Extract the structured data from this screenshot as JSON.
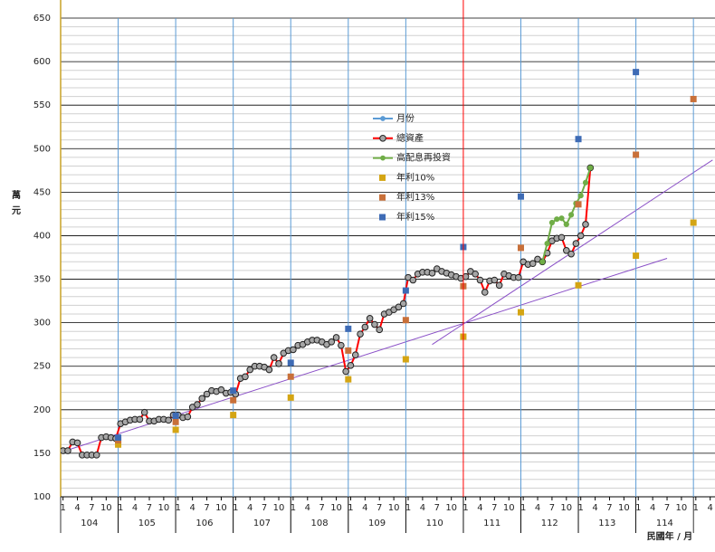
{
  "chart_data": {
    "type": "line",
    "y_title": "萬\n元",
    "x_title": "民國年 / 月",
    "xlim": [
      -0.5,
      136
    ],
    "ylim": [
      100,
      650
    ],
    "yticks": [
      100,
      150,
      200,
      250,
      300,
      350,
      400,
      450,
      500,
      550,
      600,
      650
    ],
    "y_minor_ticks": [
      110,
      120,
      130,
      140,
      160,
      170,
      180,
      190,
      210,
      220,
      230,
      240,
      260,
      270,
      280,
      290,
      310,
      320,
      330,
      340,
      360,
      370,
      380,
      390,
      410,
      420,
      430,
      440,
      460,
      470,
      480,
      490,
      510,
      520,
      530,
      540,
      560,
      570,
      580,
      590,
      610,
      620,
      630,
      640
    ],
    "xticks": [
      {
        "value": 0,
        "label": "1"
      },
      {
        "value": 3,
        "label": "4"
      },
      {
        "value": 6,
        "label": "7"
      },
      {
        "value": 9,
        "label": "10"
      },
      {
        "value": 12,
        "label": "1"
      },
      {
        "value": 15,
        "label": "4"
      },
      {
        "value": 18,
        "label": "7"
      },
      {
        "value": 21,
        "label": "10"
      },
      {
        "value": 24,
        "label": "1"
      },
      {
        "value": 27,
        "label": "4"
      },
      {
        "value": 30,
        "label": "7"
      },
      {
        "value": 33,
        "label": "10"
      },
      {
        "value": 36,
        "label": "1"
      },
      {
        "value": 39,
        "label": "4"
      },
      {
        "value": 42,
        "label": "7"
      },
      {
        "value": 45,
        "label": "10"
      },
      {
        "value": 48,
        "label": "1"
      },
      {
        "value": 51,
        "label": "4"
      },
      {
        "value": 54,
        "label": "7"
      },
      {
        "value": 57,
        "label": "10"
      },
      {
        "value": 60,
        "label": "1"
      },
      {
        "value": 63,
        "label": "4"
      },
      {
        "value": 66,
        "label": "7"
      },
      {
        "value": 69,
        "label": "10"
      },
      {
        "value": 72,
        "label": "1"
      },
      {
        "value": 75,
        "label": "4"
      },
      {
        "value": 78,
        "label": "7"
      },
      {
        "value": 81,
        "label": "10"
      },
      {
        "value": 84,
        "label": "1"
      },
      {
        "value": 87,
        "label": "4"
      },
      {
        "value": 90,
        "label": "7"
      },
      {
        "value": 93,
        "label": "10"
      },
      {
        "value": 96,
        "label": "1"
      },
      {
        "value": 99,
        "label": "4"
      },
      {
        "value": 102,
        "label": "7"
      },
      {
        "value": 105,
        "label": "10"
      },
      {
        "value": 108,
        "label": "1"
      },
      {
        "value": 111,
        "label": "4"
      },
      {
        "value": 114,
        "label": "7"
      },
      {
        "value": 117,
        "label": "10"
      },
      {
        "value": 120,
        "label": "1"
      },
      {
        "value": 123,
        "label": "4"
      },
      {
        "value": 126,
        "label": "7"
      },
      {
        "value": 129,
        "label": "10"
      },
      {
        "value": 132,
        "label": "1"
      },
      {
        "value": 135,
        "label": "4"
      }
    ],
    "year_labels": [
      {
        "value": 5.5,
        "label": "104"
      },
      {
        "value": 17.5,
        "label": "105"
      },
      {
        "value": 29.5,
        "label": "106"
      },
      {
        "value": 41.5,
        "label": "107"
      },
      {
        "value": 53.5,
        "label": "108"
      },
      {
        "value": 65.5,
        "label": "109"
      },
      {
        "value": 77.5,
        "label": "110"
      },
      {
        "value": 89.5,
        "label": "111"
      },
      {
        "value": 101.5,
        "label": "112"
      },
      {
        "value": 113.5,
        "label": "113"
      },
      {
        "value": 125.5,
        "label": "114"
      }
    ],
    "marker_line": {
      "x": 83.5,
      "color": "#ff0000"
    },
    "series": [
      {
        "name": "月份",
        "kind": "vline",
        "color": "#5b9bd5",
        "x": [
          11.5,
          23.5,
          35.5,
          47.5,
          59.5,
          71.5,
          95.5,
          107.5,
          119.5,
          131.5
        ]
      },
      {
        "name": "總資產",
        "kind": "line",
        "color": "#ff0000",
        "marker_color": "#a6a6a6",
        "x": [
          0,
          1,
          2,
          3,
          4,
          5,
          6,
          7,
          8,
          9,
          10,
          11,
          12,
          13,
          14,
          15,
          16,
          17,
          18,
          19,
          20,
          21,
          22,
          23,
          24,
          25,
          26,
          27,
          28,
          29,
          30,
          31,
          32,
          33,
          34,
          35,
          36,
          37,
          38,
          39,
          40,
          41,
          42,
          43,
          44,
          45,
          46,
          47,
          48,
          49,
          50,
          51,
          52,
          53,
          54,
          55,
          56,
          57,
          58,
          59,
          60,
          61,
          62,
          63,
          64,
          65,
          66,
          67,
          68,
          69,
          70,
          71,
          72,
          73,
          74,
          75,
          76,
          77,
          78,
          79,
          80,
          81,
          82,
          83,
          84,
          85,
          86,
          87,
          88,
          89,
          90,
          91,
          92,
          93,
          94,
          95,
          96,
          97,
          98,
          99,
          100,
          101,
          102,
          103,
          104,
          105,
          106,
          107,
          108,
          109,
          110
        ],
        "values": [
          153,
          153,
          163,
          162,
          148,
          148,
          148,
          148,
          168,
          169,
          168,
          167,
          184,
          186,
          188,
          189,
          189,
          197,
          187,
          187,
          189,
          189,
          188,
          194,
          194,
          191,
          192,
          203,
          206,
          213,
          218,
          222,
          221,
          223,
          219,
          220,
          218,
          236,
          238,
          246,
          250,
          250,
          249,
          246,
          260,
          253,
          265,
          268,
          269,
          274,
          275,
          278,
          280,
          280,
          278,
          275,
          278,
          283,
          274,
          244,
          251,
          263,
          287,
          295,
          305,
          298,
          292,
          310,
          312,
          315,
          318,
          322,
          352,
          349,
          356,
          358,
          358,
          357,
          362,
          359,
          357,
          355,
          353,
          351,
          353,
          359,
          356,
          349,
          335,
          348,
          349,
          343,
          356,
          354,
          352,
          352,
          370,
          367,
          368,
          373,
          370,
          380,
          394,
          397,
          398,
          383,
          379,
          391,
          400,
          413,
          478
        ]
      },
      {
        "name": "高配息再投資",
        "kind": "line",
        "color": "#70ad47",
        "x": [
          100,
          101,
          102,
          103,
          104,
          105,
          106,
          107,
          108,
          109,
          110
        ],
        "values": [
          370,
          391,
          415,
          419,
          420,
          413,
          424,
          437,
          446,
          461,
          478
        ]
      },
      {
        "name": "年利10%",
        "kind": "scatter",
        "color": "#d4a514",
        "x": [
          11.5,
          23.5,
          35.5,
          47.5,
          59.5,
          71.5,
          83.5,
          95.5,
          107.5,
          119.5,
          131.5
        ],
        "values": [
          160,
          177,
          194,
          214,
          235,
          258,
          284,
          312,
          343,
          377,
          415
        ]
      },
      {
        "name": "年利13%",
        "kind": "scatter",
        "color": "#c8703a",
        "x": [
          11.5,
          23.5,
          35.5,
          47.5,
          59.5,
          71.5,
          83.5,
          95.5,
          107.5,
          119.5,
          131.5
        ],
        "values": [
          165,
          186,
          211,
          238,
          268,
          303,
          342,
          386,
          436,
          493,
          557
        ]
      },
      {
        "name": "年利15%",
        "kind": "scatter",
        "color": "#3e6bb5",
        "x": [
          11.5,
          23.5,
          35.5,
          47.5,
          59.5,
          71.5,
          83.5,
          95.5,
          107.5,
          119.5
        ],
        "values": [
          168,
          193,
          222,
          254,
          293,
          337,
          387,
          445,
          511,
          588
        ]
      }
    ],
    "trendlines": [
      {
        "color": "#8a4fc7",
        "x": [
          -4,
          126
        ],
        "values": [
          145,
          374
        ]
      },
      {
        "color": "#8a4fc7",
        "x": [
          77,
          135.5
        ],
        "values": [
          275,
          487
        ]
      }
    ]
  }
}
